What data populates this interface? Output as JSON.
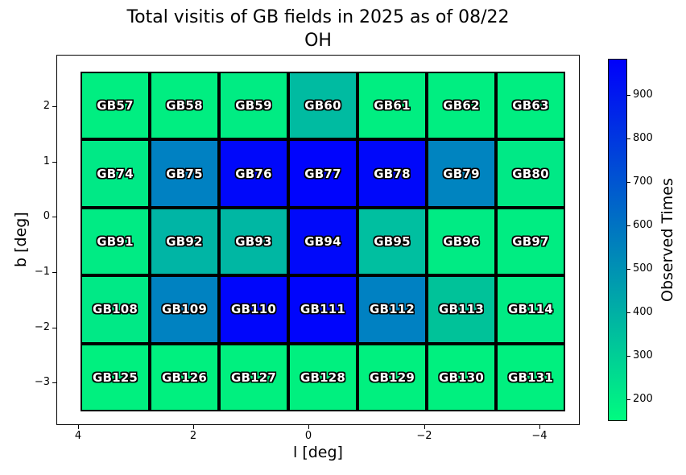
{
  "title": {
    "line1": "Total visitis of GB fields in 2025 as of 08/22",
    "line2": "OH"
  },
  "axes": {
    "xlabel": "l [deg]",
    "ylabel": "b [deg]",
    "x_tick_labels": [
      "4",
      "2",
      "0",
      "−2",
      "−4"
    ],
    "y_tick_labels": [
      "2",
      "1",
      "0",
      "−1",
      "−2",
      "−3"
    ]
  },
  "colorbar": {
    "label": "Observed Times",
    "tick_labels": [
      "900",
      "800",
      "700",
      "600",
      "500",
      "400",
      "300",
      "200"
    ],
    "top_color": "#0000fb",
    "bottom_color": "#00fb80"
  },
  "chart_data": {
    "type": "heatmap",
    "title": "Total visitis of GB fields in 2025 as of 08/22",
    "subtitle": "OH",
    "xlabel": "l [deg]",
    "ylabel": "b [deg]",
    "colorbar_label": "Observed Times",
    "colormap": "winter_r (green = low, blue = high)",
    "colorbar_range_estimate": [
      150,
      985
    ],
    "colorbar_ticks": [
      200,
      300,
      400,
      500,
      600,
      700,
      800,
      900
    ],
    "xlim": [
      4.5,
      -4.7
    ],
    "ylim": [
      -3.8,
      2.95
    ],
    "x_axis_inverted": true,
    "grid_shape": {
      "rows": 5,
      "cols": 7
    },
    "rows": [
      {
        "b_center_estimate": 2.0,
        "cells": [
          {
            "label": "GB57",
            "color": "#00ee81",
            "value_estimate": 205
          },
          {
            "label": "GB58",
            "color": "#00ee81",
            "value_estimate": 205
          },
          {
            "label": "GB59",
            "color": "#00ec83",
            "value_estimate": 215
          },
          {
            "label": "GB60",
            "color": "#00bba1",
            "value_estimate": 370
          },
          {
            "label": "GB61",
            "color": "#00ee81",
            "value_estimate": 205
          },
          {
            "label": "GB62",
            "color": "#00ee81",
            "value_estimate": 205
          },
          {
            "label": "GB63",
            "color": "#00ee81",
            "value_estimate": 205
          }
        ]
      },
      {
        "b_center_estimate": 0.8,
        "cells": [
          {
            "label": "GB74",
            "color": "#00e986",
            "value_estimate": 230
          },
          {
            "label": "GB75",
            "color": "#0081c2",
            "value_estimate": 560
          },
          {
            "label": "GB76",
            "color": "#0008fa",
            "value_estimate": 960
          },
          {
            "label": "GB77",
            "color": "#0004fd",
            "value_estimate": 975
          },
          {
            "label": "GB78",
            "color": "#0008fa",
            "value_estimate": 960
          },
          {
            "label": "GB79",
            "color": "#0084c0",
            "value_estimate": 550
          },
          {
            "label": "GB80",
            "color": "#00e986",
            "value_estimate": 230
          }
        ]
      },
      {
        "b_center_estimate": -0.45,
        "cells": [
          {
            "label": "GB91",
            "color": "#00eb84",
            "value_estimate": 220
          },
          {
            "label": "GB92",
            "color": "#00b5a5",
            "value_estimate": 390
          },
          {
            "label": "GB93",
            "color": "#00b7a3",
            "value_estimate": 385
          },
          {
            "label": "GB94",
            "color": "#0009fa",
            "value_estimate": 955
          },
          {
            "label": "GB95",
            "color": "#00bfa0",
            "value_estimate": 360
          },
          {
            "label": "GB96",
            "color": "#00eb84",
            "value_estimate": 220
          },
          {
            "label": "GB97",
            "color": "#00ed82",
            "value_estimate": 210
          }
        ]
      },
      {
        "b_center_estimate": -1.65,
        "cells": [
          {
            "label": "GB108",
            "color": "#00e986",
            "value_estimate": 230
          },
          {
            "label": "GB109",
            "color": "#0082c1",
            "value_estimate": 560
          },
          {
            "label": "GB110",
            "color": "#0006fb",
            "value_estimate": 965
          },
          {
            "label": "GB111",
            "color": "#0005fc",
            "value_estimate": 970
          },
          {
            "label": "GB112",
            "color": "#0081c2",
            "value_estimate": 560
          },
          {
            "label": "GB113",
            "color": "#00c299",
            "value_estimate": 345
          },
          {
            "label": "GB114",
            "color": "#00eb84",
            "value_estimate": 220
          }
        ]
      },
      {
        "b_center_estimate": -2.9,
        "cells": [
          {
            "label": "GB125",
            "color": "#00f07f",
            "value_estimate": 195
          },
          {
            "label": "GB126",
            "color": "#00f07f",
            "value_estimate": 195
          },
          {
            "label": "GB127",
            "color": "#00f07f",
            "value_estimate": 195
          },
          {
            "label": "GB128",
            "color": "#00f07f",
            "value_estimate": 195
          },
          {
            "label": "GB129",
            "color": "#00f07f",
            "value_estimate": 195
          },
          {
            "label": "GB130",
            "color": "#00f07f",
            "value_estimate": 195
          },
          {
            "label": "GB131",
            "color": "#00f07f",
            "value_estimate": 195
          }
        ]
      }
    ]
  }
}
